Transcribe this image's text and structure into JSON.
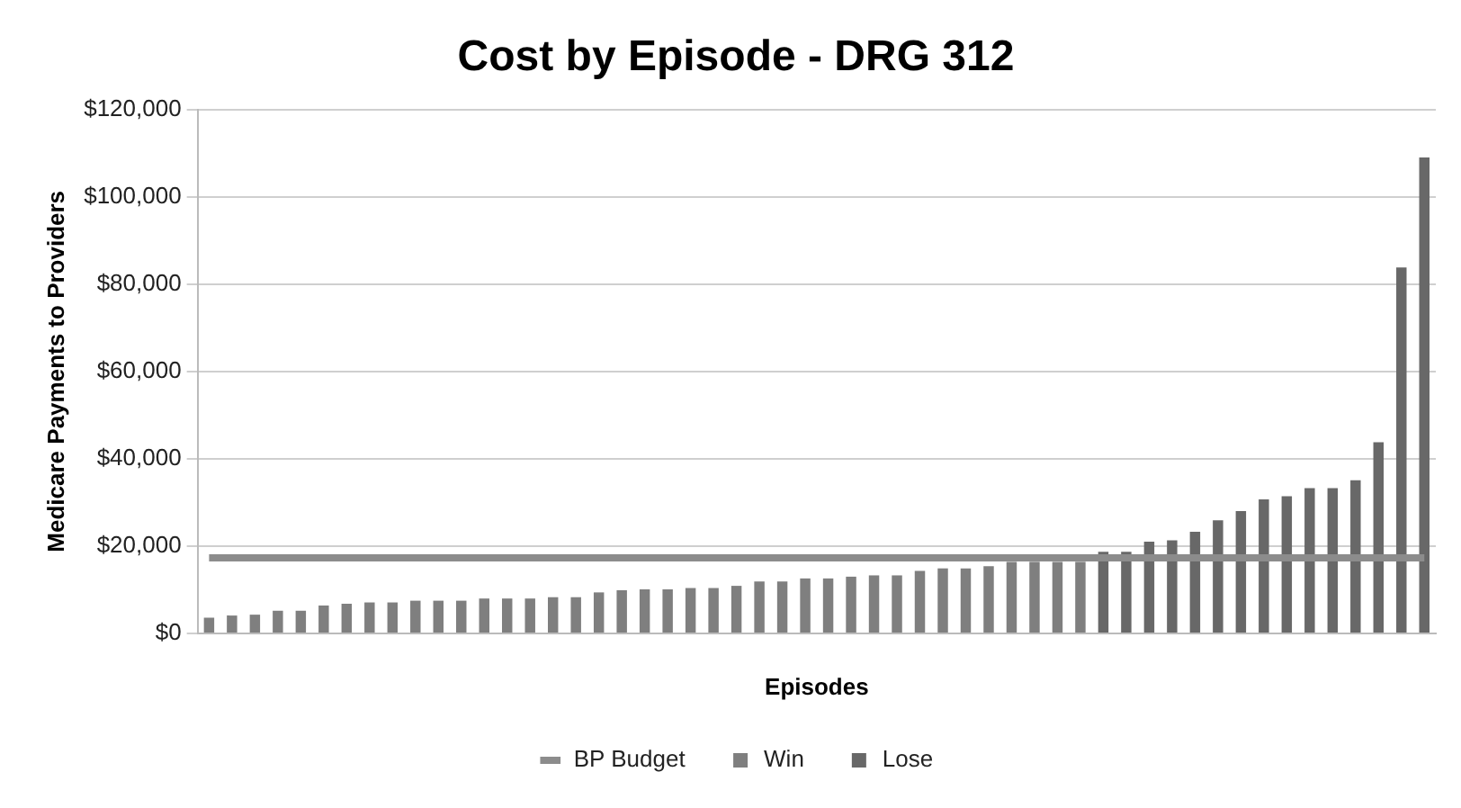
{
  "chart_data": {
    "type": "bar",
    "title": "Cost by Episode - DRG 312",
    "xlabel": "Episodes",
    "ylabel": "Medicare Payments to Providers",
    "categories": [
      null,
      null,
      null,
      null,
      null,
      null,
      null,
      null,
      null,
      null,
      null,
      null,
      null,
      null,
      null,
      null,
      null,
      null,
      null,
      null,
      null,
      null,
      null,
      null,
      null,
      null,
      null,
      null,
      null,
      null,
      null,
      null,
      null,
      null,
      null,
      null,
      null,
      null,
      null,
      null,
      null,
      null,
      null,
      null,
      null,
      null,
      null,
      null,
      null,
      null,
      null,
      null,
      null,
      null
    ],
    "stacked": true,
    "series": [
      {
        "name": "Win",
        "color": "#7f7f7f",
        "values": [
          3600,
          4100,
          4300,
          5200,
          5200,
          6400,
          6800,
          7100,
          7100,
          7500,
          7500,
          7500,
          8000,
          8000,
          8000,
          8300,
          8300,
          9400,
          9900,
          10100,
          10100,
          10400,
          10400,
          10900,
          11900,
          11900,
          12600,
          12600,
          13000,
          13300,
          13300,
          14300,
          14900,
          14900,
          15400,
          16400,
          16400,
          16400,
          16400,
          null,
          null,
          null,
          null,
          null,
          null,
          null,
          null,
          null,
          null,
          null,
          null,
          null,
          null,
          null
        ]
      },
      {
        "name": "Lose",
        "color": "#686868",
        "values": [
          null,
          null,
          null,
          null,
          null,
          null,
          null,
          null,
          null,
          null,
          null,
          null,
          null,
          null,
          null,
          null,
          null,
          null,
          null,
          null,
          null,
          null,
          null,
          null,
          null,
          null,
          null,
          null,
          null,
          null,
          null,
          null,
          null,
          null,
          null,
          null,
          null,
          null,
          null,
          18700,
          18700,
          21000,
          21300,
          23300,
          25900,
          28000,
          30700,
          31400,
          33300,
          33300,
          35100,
          43800,
          83800,
          109000
        ]
      },
      {
        "name": "BP Budget",
        "type": "line",
        "color": "#8c8c8c",
        "marker": "none",
        "values": [
          17300,
          17300,
          17300,
          17300,
          17300,
          17300,
          17300,
          17300,
          17300,
          17300,
          17300,
          17300,
          17300,
          17300,
          17300,
          17300,
          17300,
          17300,
          17300,
          17300,
          17300,
          17300,
          17300,
          17300,
          17300,
          17300,
          17300,
          17300,
          17300,
          17300,
          17300,
          17300,
          17300,
          17300,
          17300,
          17300,
          17300,
          17300,
          17300,
          17300,
          17300,
          17300,
          17300,
          17300,
          17300,
          17300,
          17300,
          17300,
          17300,
          17300,
          17300,
          17300,
          17300,
          17300
        ]
      }
    ],
    "ylim": [
      0,
      120000
    ],
    "yticks": [
      {
        "value": 0,
        "label": "$0"
      },
      {
        "value": 20000,
        "label": "$20,000"
      },
      {
        "value": 40000,
        "label": "$40,000"
      },
      {
        "value": 60000,
        "label": "$60,000"
      },
      {
        "value": 80000,
        "label": "$80,000"
      },
      {
        "value": 100000,
        "label": "$100,000"
      },
      {
        "value": 120000,
        "label": "$120,000"
      }
    ],
    "grid": "y",
    "legend": "bottom"
  }
}
